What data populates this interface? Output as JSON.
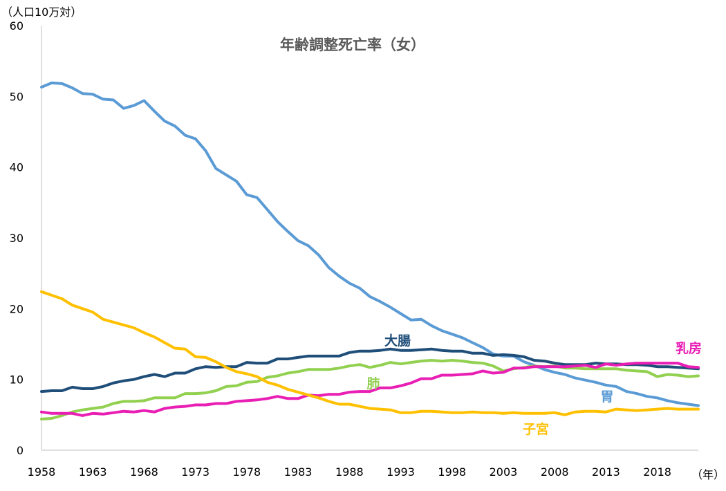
{
  "chart_data": {
    "type": "line",
    "title": "年齢調整死亡率（女）",
    "ylabel": "（人口10万対）",
    "xlabel": "（年）",
    "ylim": [
      0,
      60
    ],
    "xlim": [
      1958,
      2022
    ],
    "yticks": [
      0,
      10,
      20,
      30,
      40,
      50,
      60
    ],
    "xticks": [
      1958,
      1963,
      1968,
      1973,
      1978,
      1983,
      1988,
      1993,
      1998,
      2003,
      2008,
      2013,
      2018
    ],
    "grid": false,
    "x": [
      1958,
      1959,
      1960,
      1961,
      1962,
      1963,
      1964,
      1965,
      1966,
      1967,
      1968,
      1969,
      1970,
      1971,
      1972,
      1973,
      1974,
      1975,
      1976,
      1977,
      1978,
      1979,
      1980,
      1981,
      1982,
      1983,
      1984,
      1985,
      1986,
      1987,
      1988,
      1989,
      1990,
      1991,
      1992,
      1993,
      1994,
      1995,
      1996,
      1997,
      1998,
      1999,
      2000,
      2001,
      2002,
      2003,
      2004,
      2005,
      2006,
      2007,
      2008,
      2009,
      2010,
      2011,
      2012,
      2013,
      2014,
      2015,
      2016,
      2017,
      2018,
      2019,
      2020,
      2021,
      2022
    ],
    "series": [
      {
        "name": "胃",
        "color": "#5b9bd5",
        "values": [
          51.3,
          51.9,
          51.8,
          51.2,
          50.4,
          50.3,
          49.6,
          49.5,
          48.3,
          48.7,
          49.4,
          47.9,
          46.5,
          45.8,
          44.5,
          44.0,
          42.3,
          39.8,
          38.9,
          38.0,
          36.1,
          35.7,
          34.0,
          32.3,
          30.9,
          29.6,
          28.9,
          27.6,
          25.8,
          24.6,
          23.6,
          22.9,
          21.7,
          21.0,
          20.2,
          19.3,
          18.4,
          18.5,
          17.6,
          16.9,
          16.4,
          15.9,
          15.2,
          14.5,
          13.6,
          13.3,
          13.3,
          12.5,
          12.0,
          11.4,
          11.0,
          10.7,
          10.2,
          9.9,
          9.6,
          9.2,
          9.0,
          8.3,
          8.0,
          7.6,
          7.4,
          7.0,
          6.7,
          6.5,
          6.3
        ]
      },
      {
        "name": "大腸",
        "color": "#1f4e79",
        "values": [
          8.3,
          8.4,
          8.4,
          8.9,
          8.7,
          8.7,
          9.0,
          9.5,
          9.8,
          10.0,
          10.4,
          10.7,
          10.4,
          10.9,
          10.9,
          11.5,
          11.8,
          11.7,
          11.8,
          11.8,
          12.4,
          12.3,
          12.3,
          12.9,
          12.9,
          13.1,
          13.3,
          13.3,
          13.3,
          13.3,
          13.8,
          14.0,
          14.0,
          14.1,
          14.3,
          14.1,
          14.1,
          14.2,
          14.3,
          14.1,
          14.0,
          14.0,
          13.7,
          13.7,
          13.4,
          13.5,
          13.4,
          13.2,
          12.7,
          12.6,
          12.3,
          12.1,
          12.1,
          12.1,
          12.3,
          12.2,
          12.2,
          12.1,
          12.1,
          12.0,
          11.8,
          11.8,
          11.7,
          11.6,
          11.5
        ]
      },
      {
        "name": "肺",
        "color": "#92d050",
        "values": [
          4.4,
          4.5,
          4.9,
          5.4,
          5.7,
          5.9,
          6.1,
          6.6,
          6.9,
          6.9,
          7.0,
          7.4,
          7.4,
          7.4,
          8.0,
          8.0,
          8.1,
          8.4,
          9.0,
          9.1,
          9.6,
          9.7,
          10.3,
          10.5,
          10.9,
          11.1,
          11.4,
          11.4,
          11.4,
          11.6,
          11.9,
          12.1,
          11.7,
          12.0,
          12.4,
          12.2,
          12.4,
          12.6,
          12.7,
          12.6,
          12.7,
          12.6,
          12.4,
          12.3,
          11.9,
          11.2,
          11.5,
          11.7,
          11.9,
          11.8,
          11.9,
          11.6,
          11.6,
          11.5,
          11.5,
          11.5,
          11.5,
          11.3,
          11.2,
          11.1,
          10.4,
          10.7,
          10.6,
          10.4,
          10.5
        ]
      },
      {
        "name": "乳房",
        "color": "#e91eb4",
        "values": [
          5.4,
          5.2,
          5.2,
          5.2,
          4.9,
          5.2,
          5.1,
          5.3,
          5.5,
          5.4,
          5.6,
          5.4,
          5.9,
          6.1,
          6.2,
          6.4,
          6.4,
          6.6,
          6.6,
          6.9,
          7.0,
          7.1,
          7.3,
          7.6,
          7.3,
          7.3,
          7.8,
          7.7,
          7.9,
          7.9,
          8.2,
          8.3,
          8.3,
          8.8,
          8.8,
          9.1,
          9.5,
          10.1,
          10.1,
          10.6,
          10.6,
          10.7,
          10.8,
          11.2,
          10.9,
          11.0,
          11.6,
          11.6,
          11.8,
          11.8,
          11.8,
          11.8,
          11.9,
          12.0,
          11.7,
          12.2,
          12.0,
          12.2,
          12.3,
          12.3,
          12.3,
          12.3,
          12.3,
          11.8,
          11.7
        ]
      },
      {
        "name": "子宮",
        "color": "#ffc000",
        "values": [
          22.4,
          21.9,
          21.4,
          20.5,
          20.0,
          19.5,
          18.5,
          18.1,
          17.7,
          17.3,
          16.6,
          16.0,
          15.2,
          14.4,
          14.3,
          13.2,
          13.1,
          12.5,
          11.7,
          11.1,
          10.8,
          10.4,
          9.6,
          9.2,
          8.6,
          8.2,
          7.8,
          7.4,
          6.9,
          6.5,
          6.5,
          6.2,
          5.9,
          5.8,
          5.7,
          5.3,
          5.3,
          5.5,
          5.5,
          5.4,
          5.3,
          5.3,
          5.4,
          5.3,
          5.3,
          5.2,
          5.3,
          5.2,
          5.2,
          5.2,
          5.3,
          5.0,
          5.4,
          5.5,
          5.5,
          5.4,
          5.8,
          5.7,
          5.6,
          5.7,
          5.8,
          5.9,
          5.8,
          5.8,
          5.8
        ]
      }
    ]
  }
}
